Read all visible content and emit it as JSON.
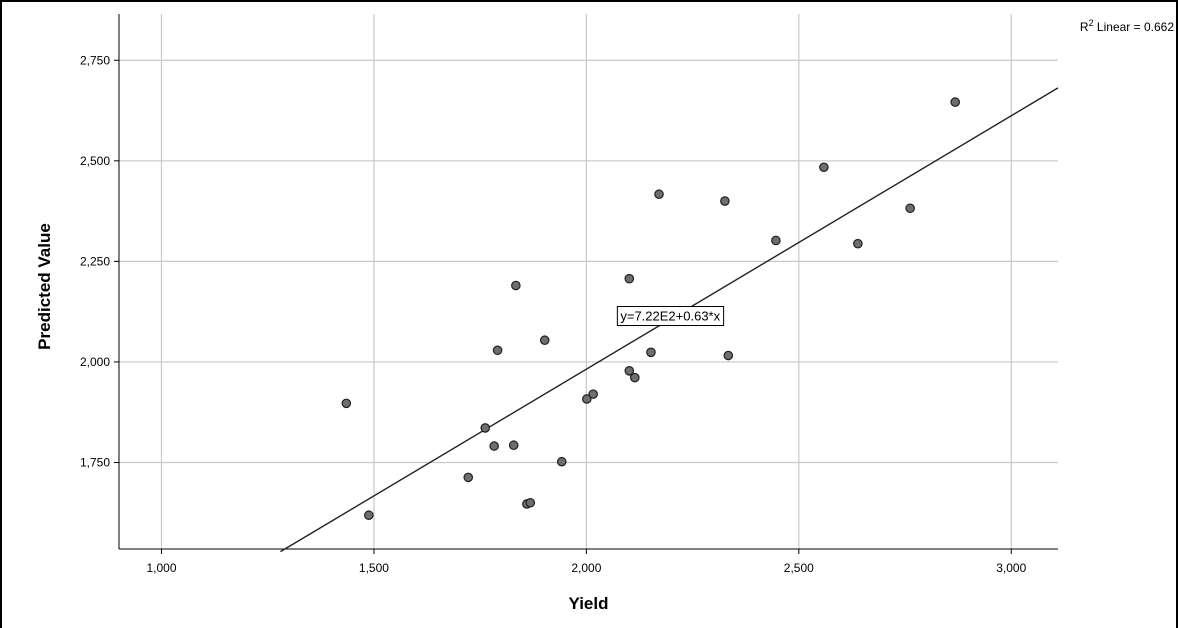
{
  "chart_data": {
    "type": "scatter",
    "xlabel": "Yield",
    "ylabel": "Predicted Value",
    "xlim": [
      900,
      3110
    ],
    "ylim": [
      1535,
      2865
    ],
    "xticks": [
      1000,
      1500,
      2000,
      2500,
      3000
    ],
    "xtick_labels": [
      "1,000",
      "1,500",
      "2,000",
      "2,500",
      "3,000"
    ],
    "yticks": [
      1750,
      2000,
      2250,
      2500,
      2750
    ],
    "ytick_labels": [
      "1,750",
      "2,000",
      "2,250",
      "2,500",
      "2,750"
    ],
    "grid": true,
    "points": [
      {
        "x": 1435,
        "y": 1897
      },
      {
        "x": 1488,
        "y": 1619
      },
      {
        "x": 1722,
        "y": 1713
      },
      {
        "x": 1762,
        "y": 1836
      },
      {
        "x": 1783,
        "y": 1791
      },
      {
        "x": 1791,
        "y": 2029
      },
      {
        "x": 1829,
        "y": 1793
      },
      {
        "x": 1834,
        "y": 2190
      },
      {
        "x": 1860,
        "y": 1647
      },
      {
        "x": 1868,
        "y": 1650
      },
      {
        "x": 1902,
        "y": 2054
      },
      {
        "x": 1942,
        "y": 1752
      },
      {
        "x": 2001,
        "y": 1908
      },
      {
        "x": 2016,
        "y": 1920
      },
      {
        "x": 2101,
        "y": 2207
      },
      {
        "x": 2101,
        "y": 1978
      },
      {
        "x": 2114,
        "y": 1961
      },
      {
        "x": 2152,
        "y": 2024
      },
      {
        "x": 2171,
        "y": 2417
      },
      {
        "x": 2326,
        "y": 2400
      },
      {
        "x": 2334,
        "y": 2016
      },
      {
        "x": 2446,
        "y": 2302
      },
      {
        "x": 2559,
        "y": 2484
      },
      {
        "x": 2639,
        "y": 2294
      },
      {
        "x": 2762,
        "y": 2382
      },
      {
        "x": 2868,
        "y": 2646
      }
    ],
    "fit_line": {
      "intercept": 722,
      "slope": 0.63,
      "x_from": 1280,
      "x_to": 3110
    },
    "annotations": {
      "equation": "y=7.22E2+0.63*x",
      "equation_at": {
        "x": 2080,
        "y": 2103
      },
      "r2_prefix": "R",
      "r2_sup": "2",
      "r2_text": " Linear = 0.662"
    },
    "colors": {
      "point_fill": "#6e6e6e",
      "point_stroke": "#1f1f1f",
      "grid": "#c8c8c8",
      "line": "#222222"
    }
  }
}
